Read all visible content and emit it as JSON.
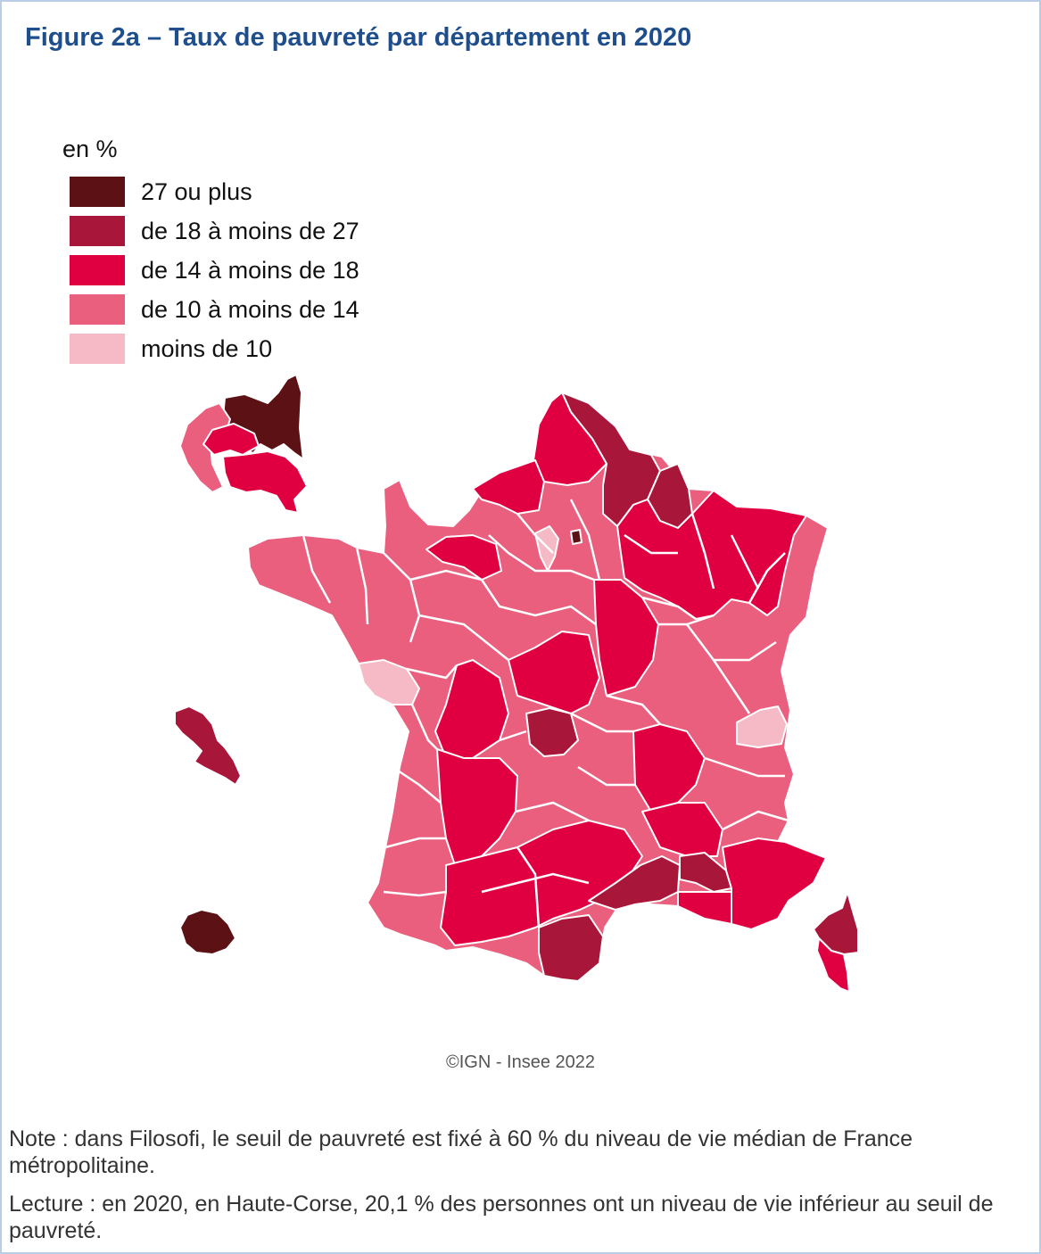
{
  "title": "Figure 2a – Taux de pauvreté par département en 2020",
  "legend": {
    "title": "en %",
    "items": [
      {
        "label": "27 ou plus",
        "color": "#5c1114"
      },
      {
        "label": "de 18 à moins de 27",
        "color": "#a8173a"
      },
      {
        "label": "de 14 à moins de 18",
        "color": "#e00042"
      },
      {
        "label": "de 10 à moins de 14",
        "color": "#ea5f7e"
      },
      {
        "label": "moins de 10",
        "color": "#f5bac6"
      }
    ]
  },
  "map_regions": [
    {
      "name": "Haute-Corse",
      "class": 1
    },
    {
      "name": "Corse-du-Sud",
      "class": 2
    },
    {
      "name": "Nord",
      "class": 1
    },
    {
      "name": "Pas-de-Calais",
      "class": 2
    },
    {
      "name": "Seine-Saint-Denis",
      "class": 0
    },
    {
      "name": "Bouches-du-Rhône",
      "class": 1
    },
    {
      "name": "Pyrénées-Orientales",
      "class": 1
    },
    {
      "name": "Vendée",
      "class": 4
    },
    {
      "name": "Haute-Savoie",
      "class": 4
    },
    {
      "name": "Guadeloupe",
      "class": 0
    },
    {
      "name": "Martinique",
      "class": 1
    },
    {
      "name": "La Réunion",
      "class": 0
    }
  ],
  "source": "©IGN - Insee 2022",
  "note": "Note : dans Filosofi, le seuil de pauvreté est fixé à 60 % du niveau de vie médian de France métropolitaine.",
  "lecture": "Lecture : en 2020, en Haute-Corse, 20,1 % des personnes ont un niveau de vie inférieur au seuil de pauvreté."
}
